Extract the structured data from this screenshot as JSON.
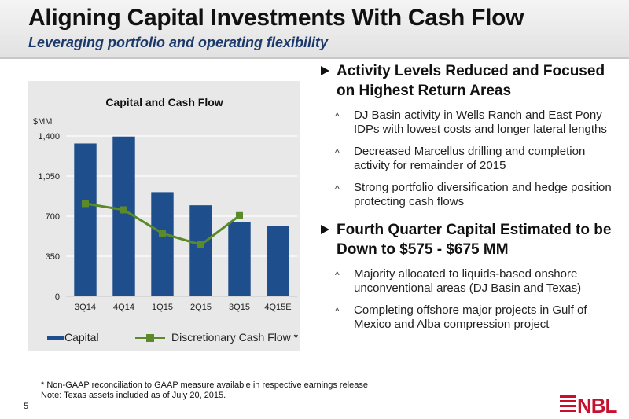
{
  "header": {
    "title": "Aligning Capital Investments With Cash Flow",
    "subtitle": "Leveraging portfolio and operating flexibility"
  },
  "chart_data": {
    "type": "bar",
    "title": "Capital and Cash Flow",
    "ylabel": "$MM",
    "xlabel": "",
    "categories": [
      "3Q14",
      "4Q14",
      "1Q15",
      "2Q15",
      "3Q15",
      "4Q15E"
    ],
    "ylim": [
      0,
      1400
    ],
    "yticks": [
      "0",
      "350",
      "700",
      "1,050",
      "1,400"
    ],
    "grid": true,
    "legend_position": "bottom",
    "series": [
      {
        "name": "Capital",
        "kind": "bar",
        "color": "#1f4e8c",
        "values": [
          1335,
          1395,
          910,
          795,
          650,
          615
        ]
      },
      {
        "name": "Discretionary Cash Flow *",
        "kind": "line",
        "color": "#5a8a2a",
        "values": [
          810,
          755,
          550,
          450,
          705,
          null
        ]
      }
    ]
  },
  "bullets": [
    {
      "heading": "Activity Levels Reduced and Focused on Highest Return Areas",
      "subs": [
        "DJ Basin activity in Wells Ranch and East Pony IDPs with lowest costs and longer lateral lengths",
        "Decreased Marcellus drilling and completion activity for remainder of 2015",
        "Strong portfolio diversification and hedge position protecting cash flows"
      ]
    },
    {
      "heading": "Fourth Quarter Capital Estimated to be Down to $575 - $675 MM",
      "subs": [
        "Majority allocated to liquids-based onshore unconventional areas (DJ Basin and Texas)",
        "Completing offshore major projects in Gulf of Mexico and Alba compression project"
      ]
    }
  ],
  "footnotes": [
    "* Non-GAAP reconciliation to GAAP measure available in respective earnings release",
    "Note: Texas assets included as of July 20, 2015."
  ],
  "page_number": "5",
  "logo": {
    "text": "NBL",
    "color": "#c8102e"
  }
}
